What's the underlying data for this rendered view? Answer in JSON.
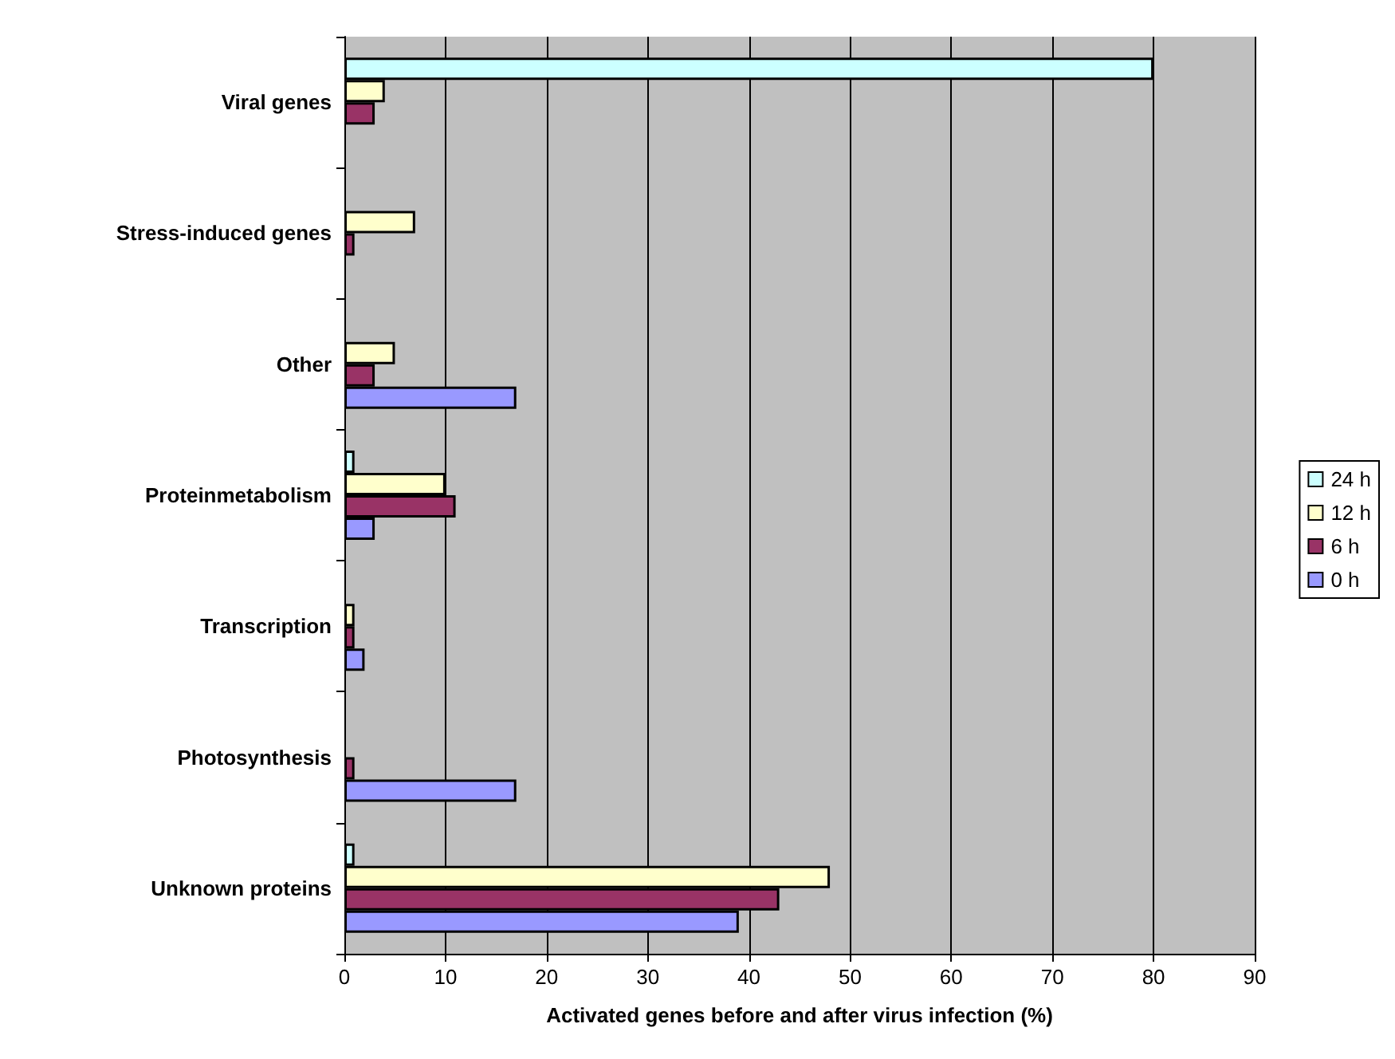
{
  "chart_data": {
    "type": "bar",
    "orientation": "horizontal",
    "xlabel": "Activated genes before and after virus infection (%)",
    "categories": [
      "Viral genes",
      "Stress-induced genes",
      "Other",
      "Proteinmetabolism",
      "Transcription",
      "Photosynthesis",
      "Unknown proteins"
    ],
    "series": [
      {
        "name": "24 h",
        "color": "#ccffff",
        "values": [
          80,
          null,
          null,
          1,
          null,
          null,
          1
        ]
      },
      {
        "name": "12 h",
        "color": "#ffffcc",
        "values": [
          4,
          7,
          5,
          10,
          1,
          null,
          48
        ]
      },
      {
        "name": "6 h",
        "color": "#993366",
        "values": [
          3,
          1,
          3,
          11,
          1,
          1,
          43
        ]
      },
      {
        "name": "0 h",
        "color": "#9999ff",
        "values": [
          null,
          null,
          17,
          3,
          2,
          17,
          39
        ]
      }
    ],
    "xlim": [
      0,
      90
    ],
    "xticks": [
      0,
      10,
      20,
      30,
      40,
      50,
      60,
      70,
      80,
      90
    ],
    "grid": "x",
    "legend": "right"
  }
}
